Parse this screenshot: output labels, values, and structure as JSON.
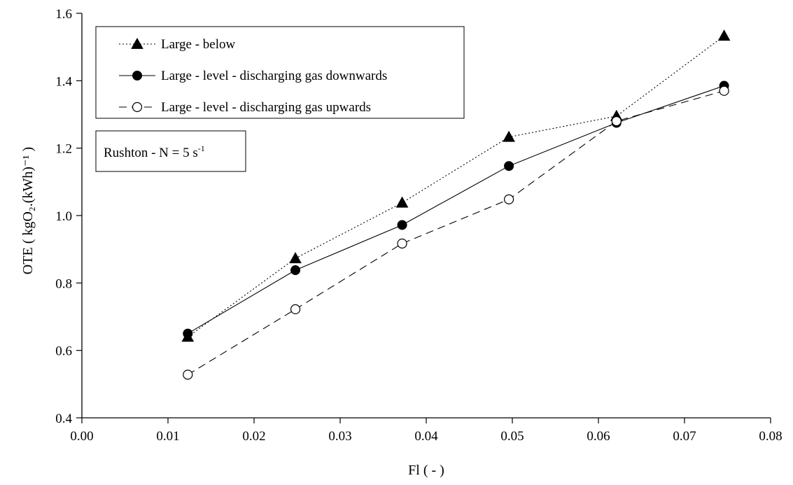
{
  "chart_data": {
    "type": "line",
    "xlabel": "Fl   ( - )",
    "ylabel": "OTE   ( kgO₂.(kWh)⁻¹ )",
    "xlim": [
      0.0,
      0.08
    ],
    "ylim": [
      0.4,
      1.6
    ],
    "x_ticks": [
      "0.00",
      "0.01",
      "0.02",
      "0.03",
      "0.04",
      "0.05",
      "0.06",
      "0.07",
      "0.08"
    ],
    "y_ticks": [
      "0.4",
      "0.6",
      "0.8",
      "1.0",
      "1.2",
      "1.4",
      "1.6"
    ],
    "grid": false,
    "legend_position": "top-left",
    "series": [
      {
        "name": "Large - below",
        "marker": "filled-triangle",
        "line_style": "dotted",
        "x": [
          0.0123,
          0.0248,
          0.0372,
          0.0496,
          0.0621,
          0.0746
        ],
        "y": [
          0.64,
          0.873,
          1.038,
          1.233,
          1.295,
          1.533
        ]
      },
      {
        "name": "Large - level - discharging gas downwards",
        "marker": "filled-circle",
        "line_style": "solid",
        "x": [
          0.0123,
          0.0248,
          0.0372,
          0.0496,
          0.0621,
          0.0746
        ],
        "y": [
          0.65,
          0.838,
          0.972,
          1.147,
          1.275,
          1.385
        ]
      },
      {
        "name": "Large - level - discharging gas upwards",
        "marker": "open-circle",
        "line_style": "dashed",
        "x": [
          0.0123,
          0.0248,
          0.0372,
          0.0496,
          0.0621,
          0.0746
        ],
        "y": [
          0.528,
          0.722,
          0.917,
          1.048,
          1.28,
          1.37
        ]
      }
    ],
    "annotation": {
      "text": "Rushton - N = 5 s",
      "superscript": "-1"
    }
  }
}
